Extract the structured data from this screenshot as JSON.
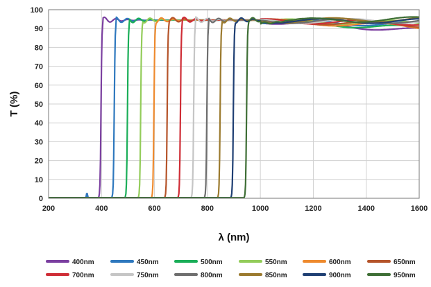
{
  "chart_data": {
    "type": "line",
    "xlabel": "λ (nm)",
    "ylabel": "T (%)",
    "xlim": [
      200,
      1600
    ],
    "ylim": [
      0,
      100
    ],
    "x_ticks": [
      200,
      400,
      600,
      800,
      1000,
      1200,
      1400,
      1600
    ],
    "y_ticks": [
      0,
      10,
      20,
      30,
      40,
      50,
      60,
      70,
      80,
      90,
      100
    ],
    "grid": true,
    "legend_position": "bottom",
    "series": [
      {
        "name": "400nm",
        "color": "#7B3FA0",
        "edge": 400,
        "end_T": 89
      },
      {
        "name": "450nm",
        "color": "#2E78BE",
        "edge": 450,
        "end_T": 92
      },
      {
        "name": "500nm",
        "color": "#1AAE58",
        "edge": 500,
        "end_T": 90
      },
      {
        "name": "550nm",
        "color": "#93CC5A",
        "edge": 550,
        "end_T": 93
      },
      {
        "name": "600nm",
        "color": "#EE8A2E",
        "edge": 600,
        "end_T": 91
      },
      {
        "name": "650nm",
        "color": "#B5542A",
        "edge": 650,
        "end_T": 92
      },
      {
        "name": "700nm",
        "color": "#CF2D36",
        "edge": 700,
        "end_T": 93
      },
      {
        "name": "750nm",
        "color": "#C5C5C5",
        "edge": 750,
        "end_T": 94
      },
      {
        "name": "800nm",
        "color": "#6E6E6E",
        "edge": 800,
        "end_T": 94
      },
      {
        "name": "850nm",
        "color": "#9B7A2E",
        "edge": 850,
        "end_T": 95
      },
      {
        "name": "900nm",
        "color": "#1F3F73",
        "edge": 900,
        "end_T": 94
      },
      {
        "name": "950nm",
        "color": "#3E6E35",
        "edge": 950,
        "end_T": 95
      }
    ]
  }
}
